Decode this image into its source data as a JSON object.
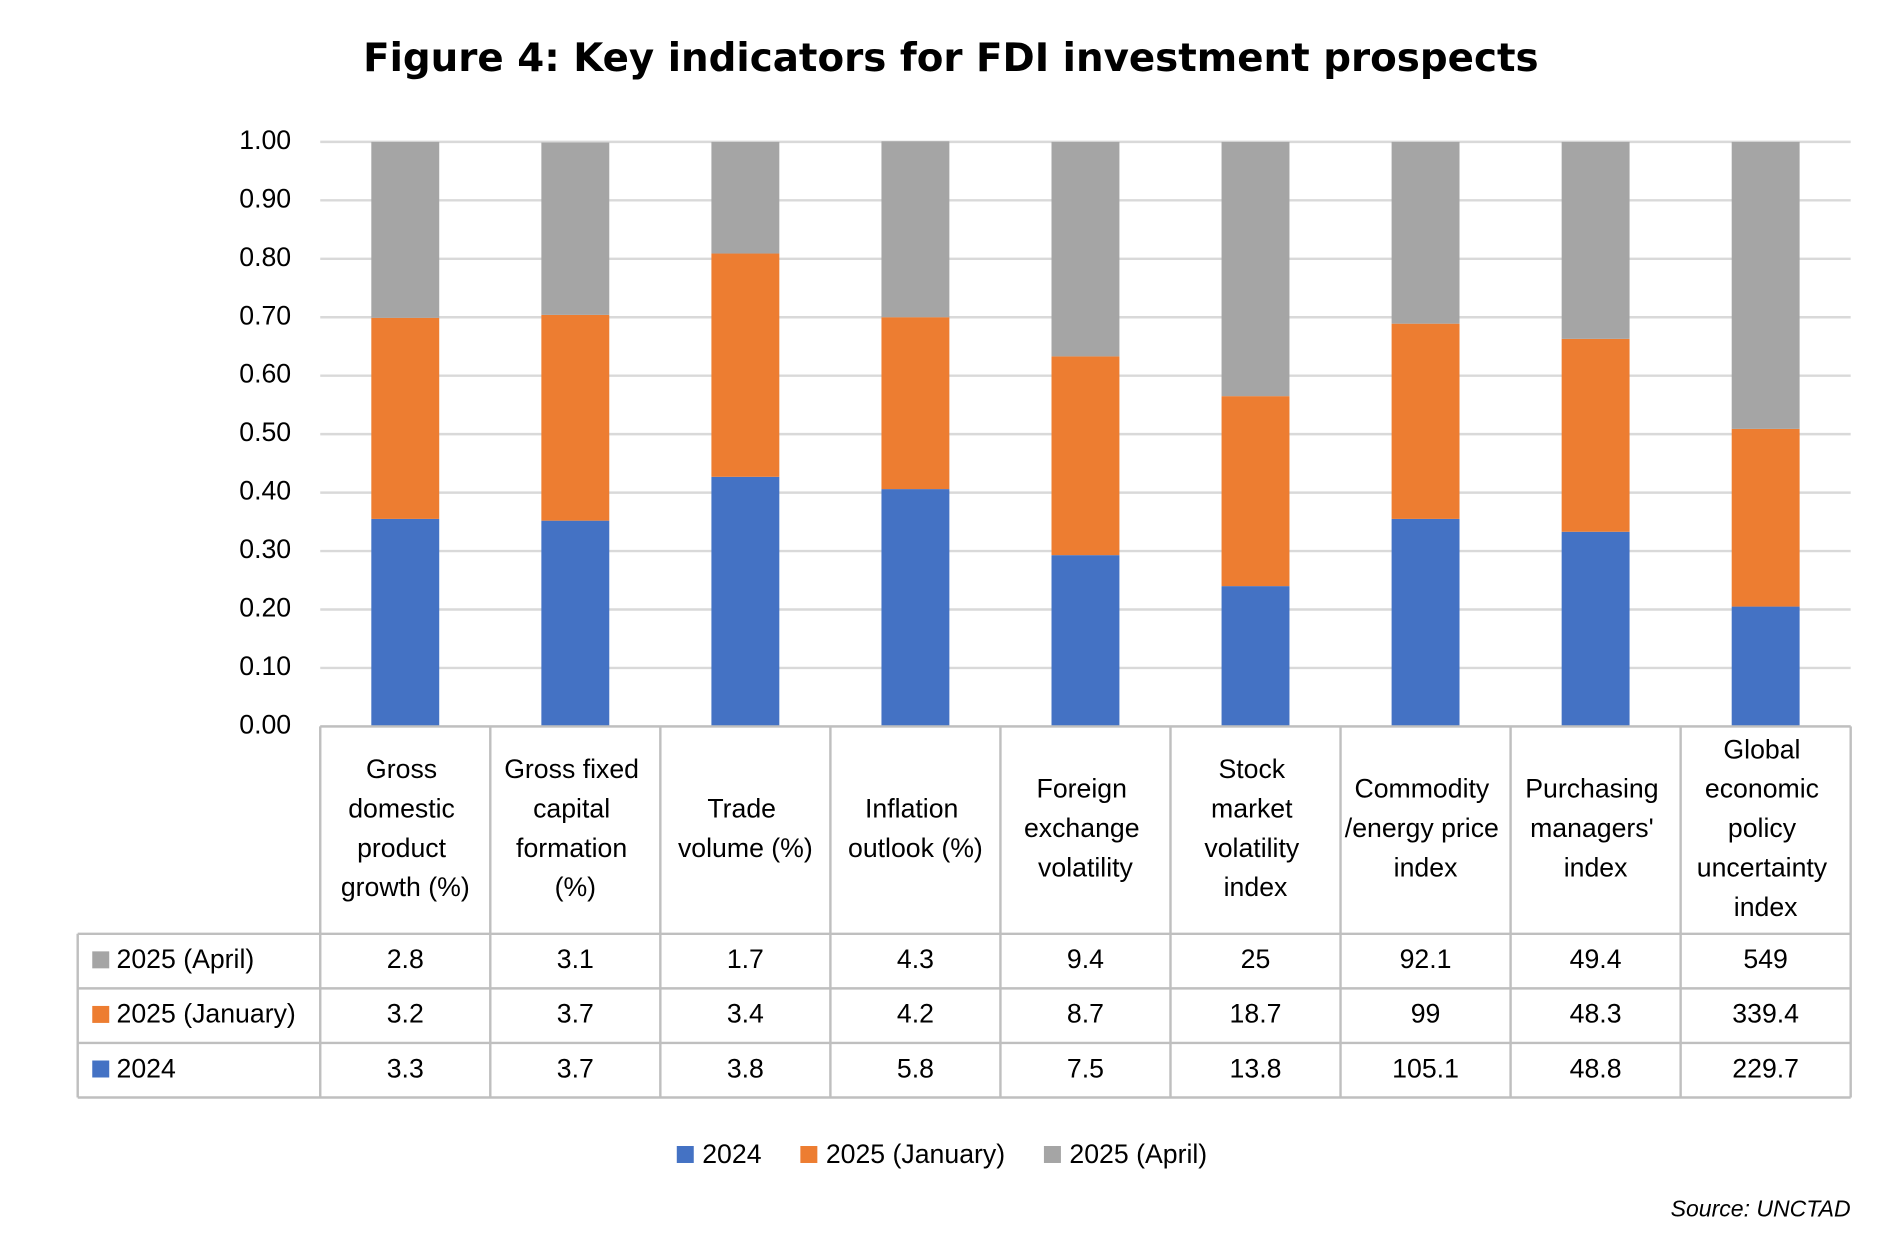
{
  "chart_data": {
    "type": "stacked_bar",
    "title": "Figure 4: Key indicators for FDI investment prospects",
    "source": "Source: UNCTAD",
    "categories": [
      "Gross domestic product growth (%)",
      "Gross fixed capital formation (%)",
      "Trade volume (%)",
      "Inflation outlook (%)",
      "Foreign exchange volatility",
      "Stock market volatility index",
      "Commodity /energy price index",
      "Purchasing managers' index",
      "Global economic policy uncertainty index"
    ],
    "series": [
      {
        "name": "2024",
        "color": "#4472c4",
        "values": [
          0.355,
          0.352,
          0.427,
          0.406,
          0.293,
          0.24,
          0.355,
          0.333,
          0.205
        ],
        "table_values": [
          3.3,
          3.7,
          3.8,
          5.8,
          7.5,
          13.8,
          105.1,
          48.8,
          229.7
        ]
      },
      {
        "name": "2025 (January)",
        "color": "#ed7d31",
        "values": [
          0.344,
          0.352,
          0.382,
          0.294,
          0.34,
          0.325,
          0.334,
          0.33,
          0.304
        ],
        "table_values": [
          3.2,
          3.7,
          3.4,
          4.2,
          8.7,
          18.7,
          99,
          48.3,
          339.4
        ]
      },
      {
        "name": "2025 (April)",
        "color": "#a5a5a5",
        "values": [
          0.301,
          0.295,
          0.191,
          0.301,
          0.367,
          0.435,
          0.311,
          0.337,
          0.491
        ],
        "table_values": [
          2.8,
          3.1,
          1.7,
          4.3,
          9.4,
          25,
          92.1,
          49.4,
          549
        ]
      }
    ],
    "ylim": [
      0,
      1
    ],
    "yticks": [
      {
        "value": 0,
        "label": "0.00"
      },
      {
        "value": 0.1,
        "label": "0.10"
      },
      {
        "value": 0.2,
        "label": "0.20"
      },
      {
        "value": 0.3,
        "label": "0.30"
      },
      {
        "value": 0.4,
        "label": "0.40"
      },
      {
        "value": 0.5,
        "label": "0.50"
      },
      {
        "value": 0.6,
        "label": "0.60"
      },
      {
        "value": 0.7,
        "label": "0.70"
      },
      {
        "value": 0.8,
        "label": "0.80"
      },
      {
        "value": 0.9,
        "label": "0.90"
      },
      {
        "value": 1,
        "label": "1.00"
      }
    ],
    "grid": true
  }
}
